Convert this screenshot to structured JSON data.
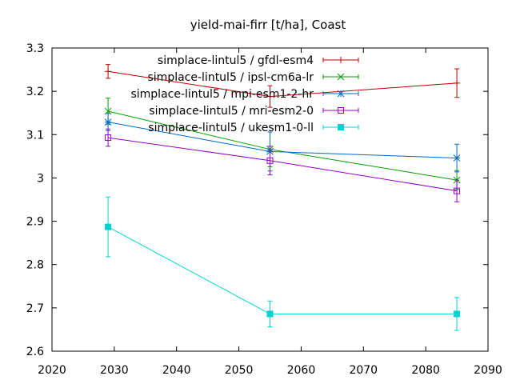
{
  "chart_data": {
    "type": "line",
    "title": "yield-mai-firr [t/ha], Coast",
    "xlabel": "",
    "ylabel": "",
    "xlim": [
      2020,
      2090
    ],
    "ylim": [
      2.6,
      3.3
    ],
    "xticks": [
      "2020",
      "2030",
      "2040",
      "2050",
      "2060",
      "2070",
      "2080",
      "2090"
    ],
    "yticks": [
      "2.6",
      "2.7",
      "2.8",
      "2.9",
      "3",
      "3.1",
      "3.2",
      "3.3"
    ],
    "xtick_values": [
      2020,
      2030,
      2040,
      2050,
      2060,
      2070,
      2080,
      2090
    ],
    "ytick_values": [
      2.6,
      2.7,
      2.8,
      2.9,
      3.0,
      3.1,
      3.2,
      3.3
    ],
    "grid": false,
    "legend_position": "top-right",
    "x": [
      2029,
      2055,
      2085
    ],
    "series": [
      {
        "name": "simplace-lintul5 / gfdl-esm4",
        "color": "#c00000",
        "marker": "plus",
        "values": [
          3.246,
          3.188,
          3.219
        ],
        "err": [
          0.016,
          0.025,
          0.033
        ]
      },
      {
        "name": "simplace-lintul5 / ipsl-cm6a-lr",
        "color": "#009f00",
        "marker": "cross",
        "values": [
          3.154,
          3.066,
          2.995
        ],
        "err": [
          0.03,
          0.04,
          0.022
        ]
      },
      {
        "name": "simplace-lintul5 / mpi-esm1-2-hr",
        "color": "#0069c8",
        "marker": "star",
        "values": [
          3.129,
          3.061,
          3.046
        ],
        "err": [
          0.02,
          0.045,
          0.032
        ]
      },
      {
        "name": "simplace-lintul5 / mri-esm2-0",
        "color": "#9400c8",
        "marker": "square-open",
        "values": [
          3.093,
          3.04,
          2.97
        ],
        "err": [
          0.02,
          0.033,
          0.025
        ]
      },
      {
        "name": "simplace-lintul5 / ukesm1-0-ll",
        "color": "#00d2d2",
        "marker": "square-filled",
        "values": [
          2.887,
          2.686,
          2.686
        ],
        "err": [
          0.069,
          0.03,
          0.038
        ]
      }
    ]
  }
}
